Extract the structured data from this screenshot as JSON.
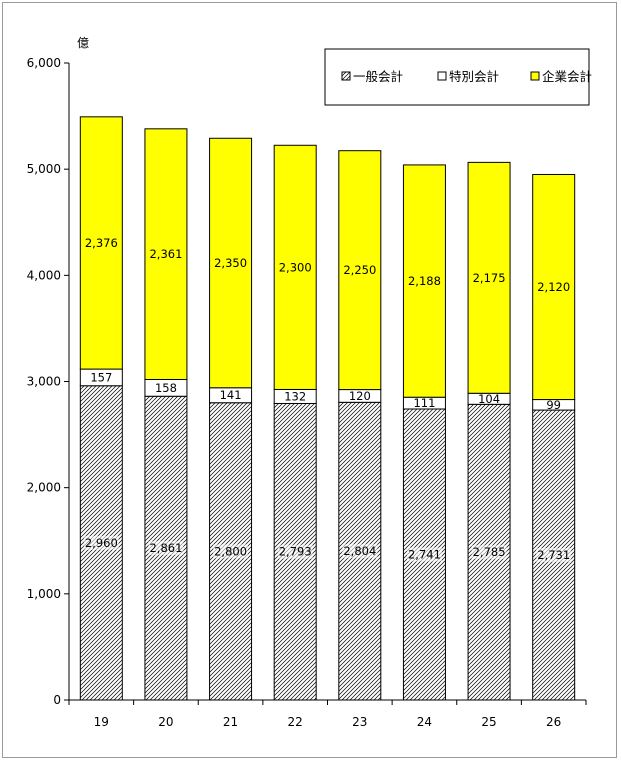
{
  "chart_data": {
    "type": "bar",
    "stacked": true,
    "unit": "億",
    "categories": [
      "19",
      "20",
      "21",
      "22",
      "23",
      "24",
      "25",
      "26"
    ],
    "series": [
      {
        "name": "一般会計",
        "values": [
          2960,
          2861,
          2800,
          2793,
          2804,
          2741,
          2785,
          2731
        ],
        "labels": [
          "2,960",
          "2,861",
          "2,800",
          "2,793",
          "2,804",
          "2,741",
          "2,785",
          "2,731"
        ],
        "fill": "hatch"
      },
      {
        "name": "特別会計",
        "values": [
          157,
          158,
          141,
          132,
          120,
          111,
          104,
          99
        ],
        "labels": [
          "157",
          "158",
          "141",
          "132",
          "120",
          "111",
          "104",
          "99"
        ],
        "fill": "#ffffff"
      },
      {
        "name": "企業会計",
        "values": [
          2376,
          2361,
          2350,
          2300,
          2250,
          2188,
          2175,
          2120
        ],
        "labels": [
          "2,376",
          "2,361",
          "2,350",
          "2,300",
          "2,250",
          "2,188",
          "2,175",
          "2,120"
        ],
        "fill": "#ffff00"
      }
    ],
    "yticks": [
      "0",
      "1,000",
      "2,000",
      "3,000",
      "4,000",
      "5,000",
      "6,000"
    ],
    "ylim": [
      0,
      6000
    ],
    "grid": false,
    "legend_position": "top-right"
  }
}
